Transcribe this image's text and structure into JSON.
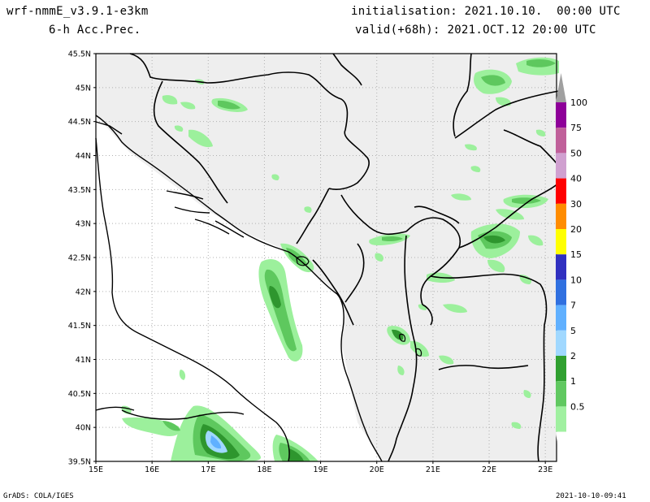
{
  "header": {
    "model": "wrf-nmmE_v3.9.1-e3km",
    "field": "6-h Acc.Prec.",
    "init": "initialisation: 2021.10.10.  00:00 UTC",
    "valid": "valid(+68h): 2021.OCT.12 20:00 UTC"
  },
  "footer": {
    "credit": "GrADS: COLA/IGES",
    "timestamp": "2021-10-10-09:41"
  },
  "axes": {
    "lat_labels": [
      "45.5N",
      "45N",
      "44.5N",
      "44N",
      "43.5N",
      "43N",
      "42.5N",
      "42N",
      "41.5N",
      "41N",
      "40.5N",
      "40N",
      "39.5N"
    ],
    "lon_labels": [
      "15E",
      "16E",
      "17E",
      "18E",
      "19E",
      "20E",
      "21E",
      "22E",
      "23E"
    ],
    "lat_range": [
      39.5,
      45.5
    ],
    "lon_range": [
      15.0,
      23.2
    ]
  },
  "colorbar": {
    "labels": [
      "100",
      "75",
      "50",
      "40",
      "30",
      "20",
      "15",
      "10",
      "7",
      "5",
      "2",
      "1",
      "0.5"
    ],
    "colors": [
      "#8e0099",
      "#c0609a",
      "#d0a0d0",
      "#ff0000",
      "#ff8c00",
      "#ffff00",
      "#3030c0",
      "#3070e0",
      "#60b0ff",
      "#a0d8ff",
      "#30a030",
      "#60c860",
      "#a0f0a0"
    ],
    "top_arrow_color": "#a0a0a0"
  },
  "colors": {
    "land": "#eeeeee",
    "grid": "#b0b0b0",
    "light_green": "#9cf09c",
    "mid_green": "#5ec85e",
    "dark_green": "#2e962e",
    "blue": "#60b0ff",
    "light_blue": "#a0d8ff"
  }
}
